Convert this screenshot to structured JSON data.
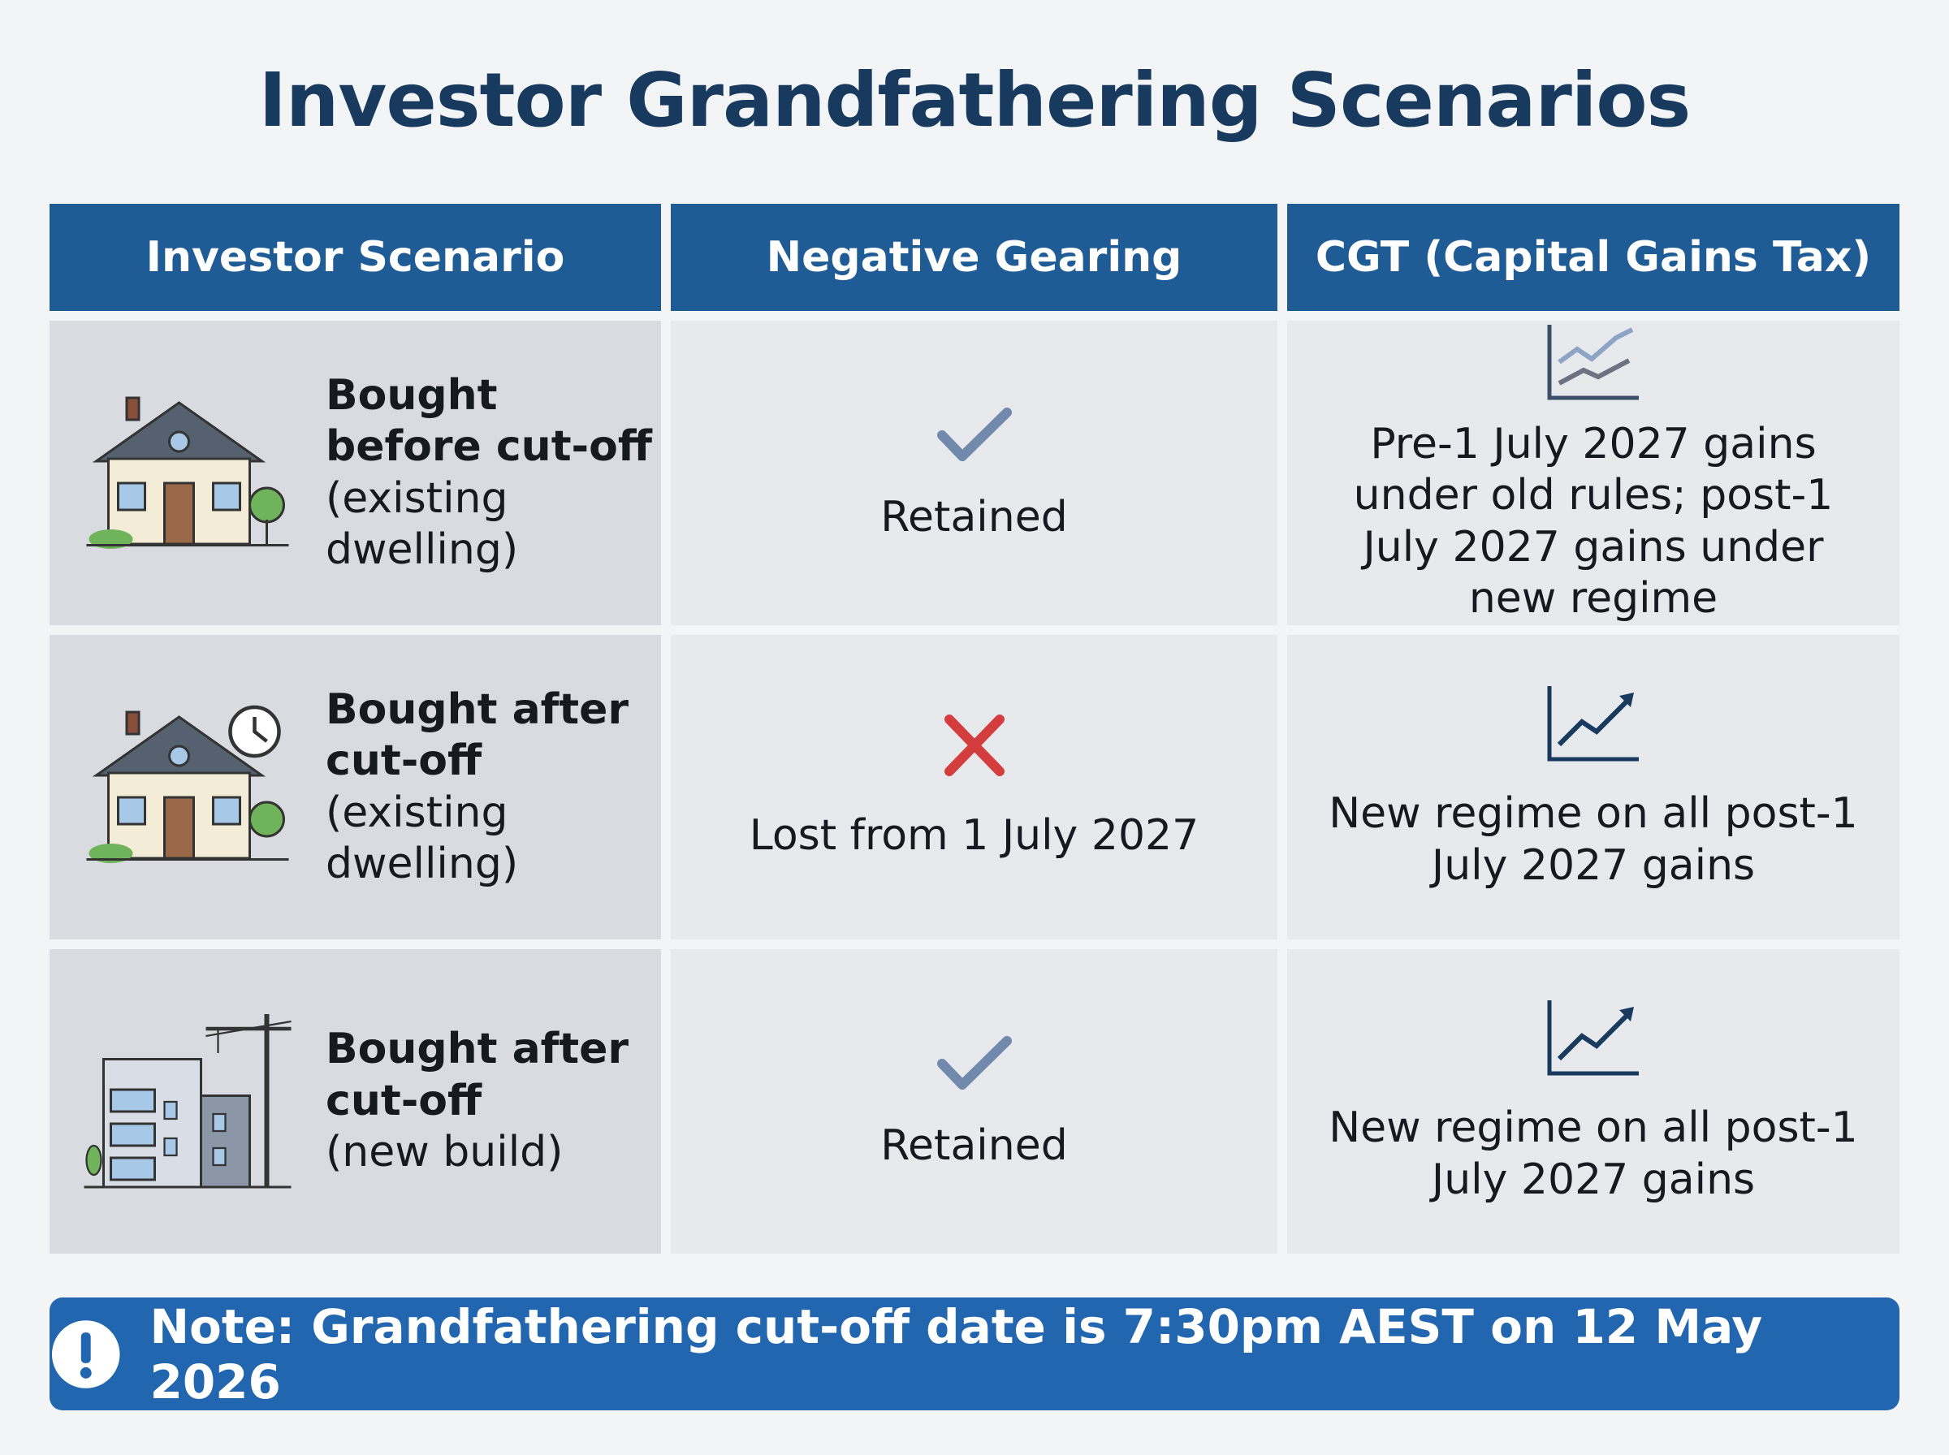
{
  "title": "Investor Grandfathering Scenarios",
  "table": {
    "headers": [
      "Investor Scenario",
      "Negative Gearing",
      "CGT (Capital Gains Tax)"
    ],
    "rows": [
      {
        "scenario": {
          "bold": "Bought before cut-off",
          "detail": "(existing dwelling)"
        },
        "negative_gearing": "Retained",
        "cgt": "Pre-1 July 2027 gains under old rules; post-1 July 2027 gains under new regime"
      },
      {
        "scenario": {
          "bold": "Bought after cut-off",
          "detail": "(existing dwelling)"
        },
        "negative_gearing": "Lost from 1 July 2027",
        "cgt": "New regime on all post-1 July 2027 gains"
      },
      {
        "scenario": {
          "bold": "Bought after cut-off",
          "detail": "(new build)"
        },
        "negative_gearing": "Retained",
        "cgt": "New regime on all post-1 July 2027 gains"
      }
    ]
  },
  "note": "Note: Grandfathering cut-off date is 7:30pm AEST on 12 May 2026"
}
